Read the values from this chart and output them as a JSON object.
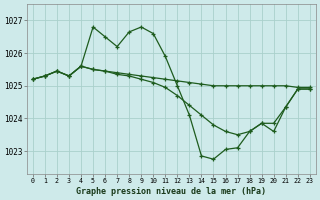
{
  "title": "Graphe pression niveau de la mer (hPa)",
  "hours": [
    0,
    1,
    2,
    3,
    4,
    5,
    6,
    7,
    8,
    9,
    10,
    11,
    12,
    13,
    14,
    15,
    16,
    17,
    18,
    19,
    20,
    21,
    22,
    23
  ],
  "yticks": [
    1023,
    1024,
    1025,
    1026,
    1027
  ],
  "ylim": [
    1022.3,
    1027.5
  ],
  "xlim": [
    -0.5,
    23.5
  ],
  "bg_color": "#ceeaea",
  "grid_color": "#aad0cc",
  "line_color": "#1e5c1e",
  "series1": [
    1025.2,
    1025.3,
    1025.45,
    1025.3,
    1025.6,
    1026.8,
    1026.5,
    1026.2,
    1026.65,
    1026.8,
    1026.6,
    1025.9,
    1025.0,
    1024.1,
    1022.85,
    1022.75,
    1023.05,
    1023.1,
    1023.6,
    1023.85,
    1023.6,
    1024.35,
    1024.9,
    1024.9
  ],
  "series2": [
    1025.2,
    1025.3,
    1025.45,
    1025.3,
    1025.6,
    1025.5,
    1025.45,
    1025.4,
    1025.35,
    1025.3,
    1025.25,
    1025.2,
    1025.15,
    1025.1,
    1025.05,
    1025.0,
    1025.0,
    1025.0,
    1025.0,
    1025.0,
    1025.0,
    1025.0,
    1024.95,
    1024.95
  ],
  "series3": [
    1025.2,
    1025.3,
    1025.45,
    1025.3,
    1025.6,
    1025.5,
    1025.45,
    1025.35,
    1025.3,
    1025.2,
    1025.1,
    1024.95,
    1024.7,
    1024.4,
    1024.1,
    1023.8,
    1023.6,
    1023.5,
    1023.6,
    1023.85,
    1023.85,
    1024.35,
    1024.9,
    1024.9
  ]
}
